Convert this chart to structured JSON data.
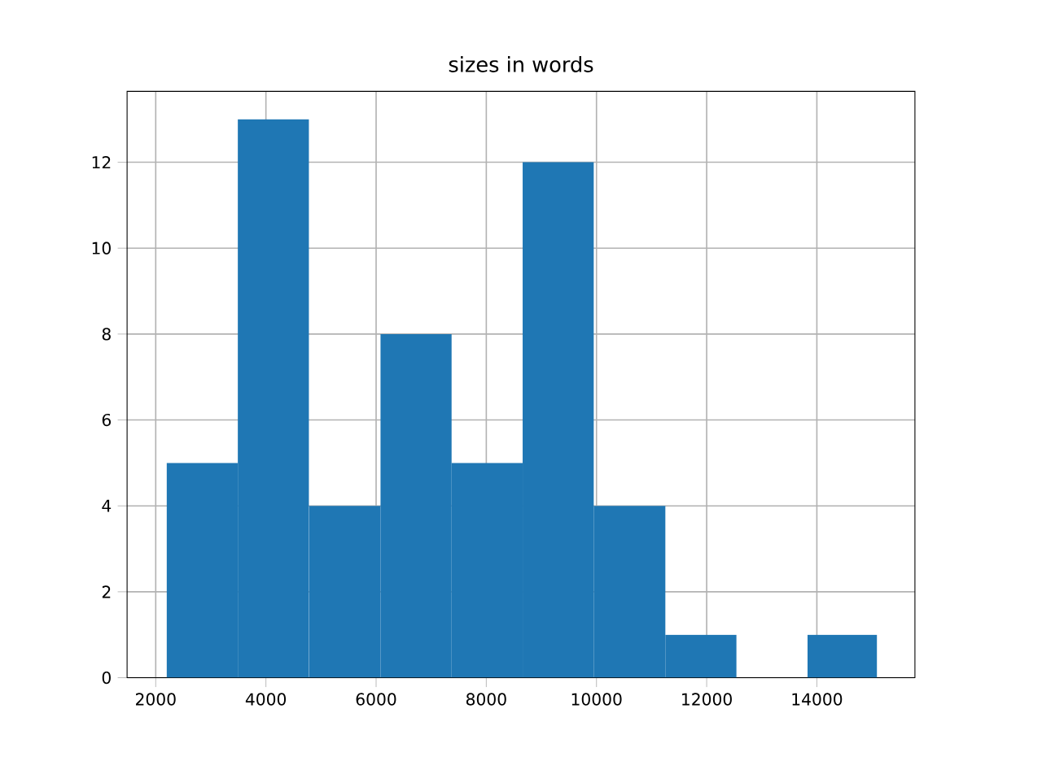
{
  "chart_data": {
    "type": "histogram",
    "title": "sizes in words",
    "bins": [
      2200,
      3490,
      4780,
      6080,
      7370,
      8660,
      9950,
      11250,
      12540,
      13830,
      15090
    ],
    "values": [
      5,
      13,
      4,
      8,
      5,
      12,
      4,
      1,
      0,
      1
    ],
    "color": "#1f77b4",
    "xlim": [
      1480,
      15780
    ],
    "ylim": [
      0,
      13.65
    ],
    "xticks": [
      2000,
      4000,
      6000,
      8000,
      10000,
      12000,
      14000
    ],
    "yticks": [
      0,
      2,
      4,
      6,
      8,
      10,
      12
    ],
    "grid": true
  }
}
